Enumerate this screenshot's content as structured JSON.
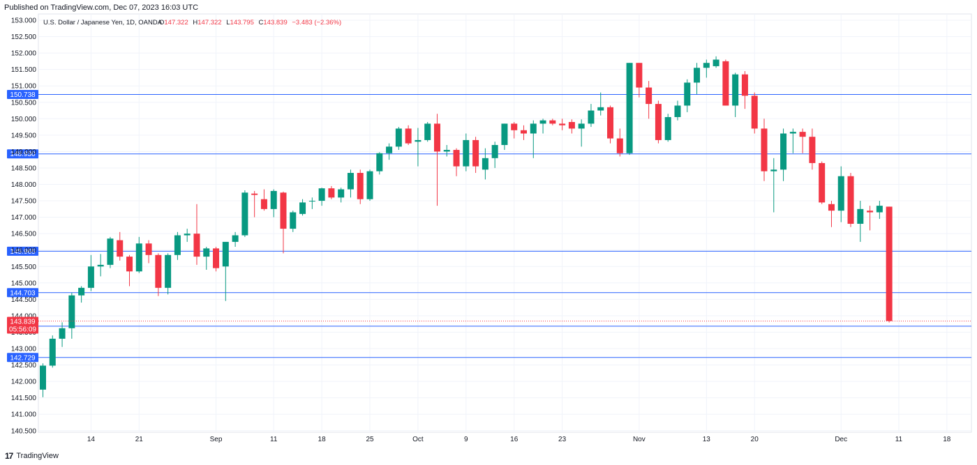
{
  "published": "Published on TradingView.com, Dec 07, 2023 16:03 UTC",
  "footer": {
    "brand": "TradingView",
    "logo_icon": "tradingview-logo-icon"
  },
  "colors": {
    "up": "#089981",
    "down": "#f23645",
    "hline": "#2962ff",
    "label_bg": "#2962ff",
    "grid": "#f0f3fa"
  },
  "chart_data": {
    "type": "candlestick",
    "instrument": "U.S. Dollar / Japanese Yen, 1D, OANDA",
    "ohlc_legend": {
      "o_label": "O",
      "o": "147.322",
      "h_label": "H",
      "h": "147.322",
      "l_label": "L",
      "l": "143.795",
      "c_label": "C",
      "c": "143.839",
      "change": "−3.483 (−2.36%)"
    },
    "y_axis": {
      "min": 140.5,
      "max": 153.0,
      "ticks": [
        "153.000",
        "152.500",
        "152.000",
        "151.500",
        "151.000",
        "150.500",
        "150.000",
        "149.500",
        "149.000",
        "148.500",
        "148.000",
        "147.500",
        "147.000",
        "146.500",
        "146.000",
        "145.500",
        "145.000",
        "144.500",
        "144.000",
        "143.500",
        "143.000",
        "142.500",
        "142.000",
        "141.500",
        "141.000",
        "140.500"
      ]
    },
    "x_axis": {
      "ticks": [
        {
          "label": "14",
          "index": 5
        },
        {
          "label": "21",
          "index": 10
        },
        {
          "label": "Sep",
          "index": 18
        },
        {
          "label": "11",
          "index": 24
        },
        {
          "label": "18",
          "index": 29
        },
        {
          "label": "25",
          "index": 34
        },
        {
          "label": "Oct",
          "index": 39
        },
        {
          "label": "9",
          "index": 44
        },
        {
          "label": "16",
          "index": 49
        },
        {
          "label": "23",
          "index": 54
        },
        {
          "label": "Nov",
          "index": 62
        },
        {
          "label": "13",
          "index": 69
        },
        {
          "label": "20",
          "index": 74
        },
        {
          "label": "Dec",
          "index": 83
        },
        {
          "label": "11",
          "index": 89
        },
        {
          "label": "18",
          "index": 94
        }
      ]
    },
    "horizontal_lines": [
      {
        "value": 150.738,
        "label": "150.738"
      },
      {
        "value": 148.93,
        "label": "148.930"
      },
      {
        "value": 145.965,
        "label": "145.965"
      },
      {
        "value": 144.703,
        "label": "144.703"
      },
      {
        "value": 143.683,
        "label": "143.683"
      },
      {
        "value": 142.729,
        "label": "142.729"
      }
    ],
    "last_price": {
      "value": 143.839,
      "label": "143.839",
      "countdown": "05:56:09"
    },
    "candles": [
      {
        "o": 141.75,
        "h": 142.55,
        "l": 141.52,
        "c": 142.48
      },
      {
        "o": 142.48,
        "h": 143.4,
        "l": 142.42,
        "c": 143.3
      },
      {
        "o": 143.3,
        "h": 143.8,
        "l": 143.05,
        "c": 143.62
      },
      {
        "o": 143.62,
        "h": 144.7,
        "l": 143.3,
        "c": 144.62
      },
      {
        "o": 144.62,
        "h": 144.9,
        "l": 144.4,
        "c": 144.85
      },
      {
        "o": 144.85,
        "h": 145.85,
        "l": 144.75,
        "c": 145.5
      },
      {
        "o": 145.5,
        "h": 145.88,
        "l": 145.2,
        "c": 145.55
      },
      {
        "o": 145.55,
        "h": 146.4,
        "l": 145.45,
        "c": 146.35
      },
      {
        "o": 146.3,
        "h": 146.55,
        "l": 145.68,
        "c": 145.8
      },
      {
        "o": 145.8,
        "h": 145.85,
        "l": 144.9,
        "c": 145.35
      },
      {
        "o": 145.35,
        "h": 146.4,
        "l": 145.3,
        "c": 146.2
      },
      {
        "o": 146.2,
        "h": 146.3,
        "l": 145.6,
        "c": 145.85
      },
      {
        "o": 145.85,
        "h": 145.9,
        "l": 144.6,
        "c": 144.85
      },
      {
        "o": 144.85,
        "h": 145.9,
        "l": 144.65,
        "c": 145.85
      },
      {
        "o": 145.85,
        "h": 146.55,
        "l": 145.7,
        "c": 146.45
      },
      {
        "o": 146.45,
        "h": 146.65,
        "l": 146.25,
        "c": 146.5
      },
      {
        "o": 146.5,
        "h": 147.4,
        "l": 145.55,
        "c": 145.8
      },
      {
        "o": 145.8,
        "h": 146.1,
        "l": 145.4,
        "c": 146.05
      },
      {
        "o": 146.05,
        "h": 146.1,
        "l": 145.35,
        "c": 145.45
      },
      {
        "o": 145.5,
        "h": 146.15,
        "l": 144.45,
        "c": 146.25
      },
      {
        "o": 146.25,
        "h": 146.55,
        "l": 146.1,
        "c": 146.45
      },
      {
        "o": 146.45,
        "h": 147.82,
        "l": 146.4,
        "c": 147.75
      },
      {
        "o": 147.72,
        "h": 147.8,
        "l": 147.0,
        "c": 147.68
      },
      {
        "o": 147.55,
        "h": 147.85,
        "l": 147.2,
        "c": 147.25
      },
      {
        "o": 147.25,
        "h": 147.85,
        "l": 147.0,
        "c": 147.8
      },
      {
        "o": 147.75,
        "h": 147.78,
        "l": 145.9,
        "c": 146.65
      },
      {
        "o": 146.65,
        "h": 147.2,
        "l": 146.55,
        "c": 147.15
      },
      {
        "o": 147.1,
        "h": 147.55,
        "l": 147.05,
        "c": 147.45
      },
      {
        "o": 147.5,
        "h": 147.6,
        "l": 147.25,
        "c": 147.5
      },
      {
        "o": 147.5,
        "h": 147.9,
        "l": 147.35,
        "c": 147.88
      },
      {
        "o": 147.88,
        "h": 147.95,
        "l": 147.55,
        "c": 147.6
      },
      {
        "o": 147.6,
        "h": 147.9,
        "l": 147.45,
        "c": 147.85
      },
      {
        "o": 147.85,
        "h": 148.45,
        "l": 147.6,
        "c": 148.35
      },
      {
        "o": 148.35,
        "h": 148.45,
        "l": 147.4,
        "c": 147.55
      },
      {
        "o": 147.55,
        "h": 148.45,
        "l": 147.5,
        "c": 148.4
      },
      {
        "o": 148.4,
        "h": 148.98,
        "l": 148.3,
        "c": 148.95
      },
      {
        "o": 148.95,
        "h": 149.25,
        "l": 148.75,
        "c": 149.15
      },
      {
        "o": 149.15,
        "h": 149.75,
        "l": 149.05,
        "c": 149.7
      },
      {
        "o": 149.7,
        "h": 149.8,
        "l": 149.2,
        "c": 149.25
      },
      {
        "o": 149.3,
        "h": 149.72,
        "l": 148.55,
        "c": 149.35
      },
      {
        "o": 149.35,
        "h": 149.9,
        "l": 149.3,
        "c": 149.85
      },
      {
        "o": 149.85,
        "h": 150.15,
        "l": 147.35,
        "c": 149.0
      },
      {
        "o": 149.0,
        "h": 149.2,
        "l": 148.85,
        "c": 149.05
      },
      {
        "o": 149.05,
        "h": 149.1,
        "l": 148.25,
        "c": 148.55
      },
      {
        "o": 148.55,
        "h": 149.55,
        "l": 148.4,
        "c": 149.35
      },
      {
        "o": 149.35,
        "h": 149.45,
        "l": 148.35,
        "c": 148.55
      },
      {
        "o": 148.45,
        "h": 149.1,
        "l": 148.15,
        "c": 148.8
      },
      {
        "o": 148.8,
        "h": 149.3,
        "l": 148.5,
        "c": 149.2
      },
      {
        "o": 149.2,
        "h": 149.85,
        "l": 149.05,
        "c": 149.85
      },
      {
        "o": 149.85,
        "h": 149.9,
        "l": 149.4,
        "c": 149.65
      },
      {
        "o": 149.65,
        "h": 149.8,
        "l": 149.35,
        "c": 149.55
      },
      {
        "o": 149.55,
        "h": 149.95,
        "l": 148.8,
        "c": 149.85
      },
      {
        "o": 149.85,
        "h": 150.0,
        "l": 149.55,
        "c": 149.95
      },
      {
        "o": 149.95,
        "h": 150.0,
        "l": 149.8,
        "c": 149.85
      },
      {
        "o": 149.85,
        "h": 150.0,
        "l": 149.65,
        "c": 149.8
      },
      {
        "o": 149.9,
        "h": 149.98,
        "l": 149.55,
        "c": 149.7
      },
      {
        "o": 149.7,
        "h": 149.98,
        "l": 149.15,
        "c": 149.85
      },
      {
        "o": 149.85,
        "h": 150.45,
        "l": 149.75,
        "c": 150.25
      },
      {
        "o": 150.25,
        "h": 150.8,
        "l": 150.1,
        "c": 150.35
      },
      {
        "o": 150.35,
        "h": 150.4,
        "l": 149.25,
        "c": 149.4
      },
      {
        "o": 149.4,
        "h": 149.7,
        "l": 148.85,
        "c": 148.95
      },
      {
        "o": 148.95,
        "h": 151.7,
        "l": 148.9,
        "c": 151.7
      },
      {
        "o": 151.7,
        "h": 151.7,
        "l": 150.65,
        "c": 150.95
      },
      {
        "o": 150.95,
        "h": 151.15,
        "l": 150.0,
        "c": 150.45
      },
      {
        "o": 150.45,
        "h": 150.55,
        "l": 149.25,
        "c": 149.35
      },
      {
        "o": 149.35,
        "h": 150.15,
        "l": 149.3,
        "c": 150.05
      },
      {
        "o": 150.05,
        "h": 150.55,
        "l": 149.95,
        "c": 150.4
      },
      {
        "o": 150.4,
        "h": 151.2,
        "l": 150.2,
        "c": 151.1
      },
      {
        "o": 151.1,
        "h": 151.7,
        "l": 150.75,
        "c": 151.55
      },
      {
        "o": 151.55,
        "h": 151.8,
        "l": 151.25,
        "c": 151.7
      },
      {
        "o": 151.6,
        "h": 151.9,
        "l": 151.55,
        "c": 151.8
      },
      {
        "o": 151.75,
        "h": 151.8,
        "l": 150.4,
        "c": 150.4
      },
      {
        "o": 150.4,
        "h": 151.4,
        "l": 150.05,
        "c": 151.35
      },
      {
        "o": 151.35,
        "h": 151.45,
        "l": 150.3,
        "c": 150.7
      },
      {
        "o": 150.7,
        "h": 150.8,
        "l": 149.55,
        "c": 149.7
      },
      {
        "o": 149.7,
        "h": 150.0,
        "l": 148.1,
        "c": 148.4
      },
      {
        "o": 148.4,
        "h": 148.8,
        "l": 147.15,
        "c": 148.45
      },
      {
        "o": 148.45,
        "h": 149.7,
        "l": 148.1,
        "c": 149.55
      },
      {
        "o": 149.55,
        "h": 149.7,
        "l": 148.95,
        "c": 149.6
      },
      {
        "o": 149.6,
        "h": 149.7,
        "l": 148.95,
        "c": 149.45
      },
      {
        "o": 149.45,
        "h": 149.7,
        "l": 148.45,
        "c": 148.65
      },
      {
        "o": 148.65,
        "h": 148.7,
        "l": 147.4,
        "c": 147.45
      },
      {
        "o": 147.4,
        "h": 147.5,
        "l": 146.7,
        "c": 147.2
      },
      {
        "o": 147.2,
        "h": 148.55,
        "l": 146.85,
        "c": 148.25
      },
      {
        "o": 148.25,
        "h": 148.35,
        "l": 146.7,
        "c": 146.8
      },
      {
        "o": 146.8,
        "h": 147.5,
        "l": 146.25,
        "c": 147.25
      },
      {
        "o": 147.2,
        "h": 147.35,
        "l": 146.6,
        "c": 147.15
      },
      {
        "o": 147.15,
        "h": 147.5,
        "l": 146.95,
        "c": 147.35
      },
      {
        "o": 147.322,
        "h": 147.322,
        "l": 143.795,
        "c": 143.839
      }
    ]
  }
}
